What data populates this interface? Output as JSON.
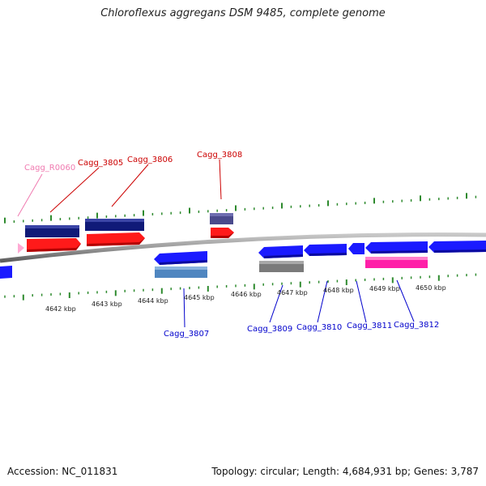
{
  "title": "Chloroflexus aggregans DSM 9485, complete genome",
  "accession": "Accession: NC_011831",
  "topology": "Topology: circular; Length: 4,684,931 bp; Genes: 3,787",
  "kbp_labels": [
    "4642 kbp",
    "4643 kbp",
    "4644 kbp",
    "4645 kbp",
    "4646 kbp",
    "4647 kbp",
    "4648 kbp",
    "4649 kbp",
    "4650 kbp"
  ],
  "gene_labels_top": [
    "Cagg_R0060",
    "Cagg_3805",
    "Cagg_3806",
    "Cagg_3808"
  ],
  "gene_labels_bottom": [
    "Cagg_3807",
    "Cagg_3809",
    "Cagg_3810",
    "Cagg_3811",
    "Cagg_3812"
  ],
  "colors": {
    "backbone": "#8a8a8a",
    "navy": "#101a78",
    "red": "#ff1a1a",
    "slate": "#4a4a8c",
    "blue": "#1a1aff",
    "steel": "#4f86c0",
    "gray": "#7a7a7a",
    "magenta": "#ff1fa8",
    "pink": "#ffaad4",
    "tick": "#2e8a2e",
    "label_red": "#cc0000",
    "label_blue": "#0000cc",
    "label_pink": "#f07ab0"
  }
}
